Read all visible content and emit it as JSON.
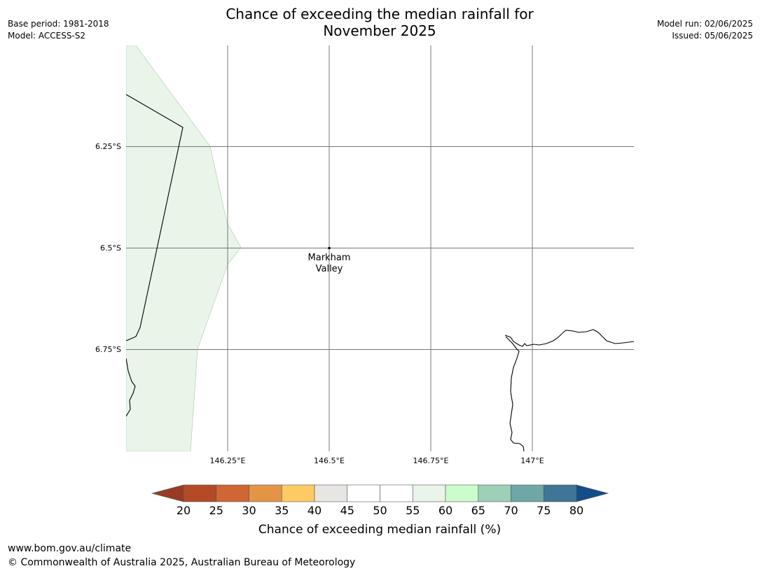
{
  "header": {
    "title_line1": "Chance of exceeding the median rainfall for",
    "title_line2": "November 2025",
    "base_period": "Base period: 1981-2018",
    "model": "Model: ACCESS-S2",
    "model_run": "Model run: 02/06/2025",
    "issued": "Issued: 05/06/2025"
  },
  "map": {
    "latitude_labels": [
      "6.25°S",
      "6.5°S",
      "6.75°S"
    ],
    "longitude_labels": [
      "146.25°E",
      "146.5°E",
      "146.75°E",
      "147°E"
    ],
    "place": {
      "name_line1": "Markham",
      "name_line2": "Valley",
      "lat": -6.5,
      "lon": 146.5
    },
    "shaded_region_category": "55-60",
    "shaded_region_color": "#e9f5e9"
  },
  "colorbar": {
    "label": "Chance of exceeding median rainfall (%)",
    "ticks": [
      "20",
      "25",
      "30",
      "35",
      "40",
      "45",
      "50",
      "55",
      "60",
      "65",
      "70",
      "75",
      "80"
    ],
    "below_color": "#9a3a24",
    "above_color": "#134e8a",
    "colors": [
      "#b44a26",
      "#cf6633",
      "#e39545",
      "#fdcb66",
      "#e8e6e2",
      "#ffffff",
      "#ffffff",
      "#eaf5e9",
      "#cbfccb",
      "#9dd0b7",
      "#6fa6a6",
      "#3f7596"
    ]
  },
  "footer": {
    "url": "www.bom.gov.au/climate",
    "copyright": "© Commonwealth of Australia 2025, Australian Bureau of Meteorology"
  }
}
